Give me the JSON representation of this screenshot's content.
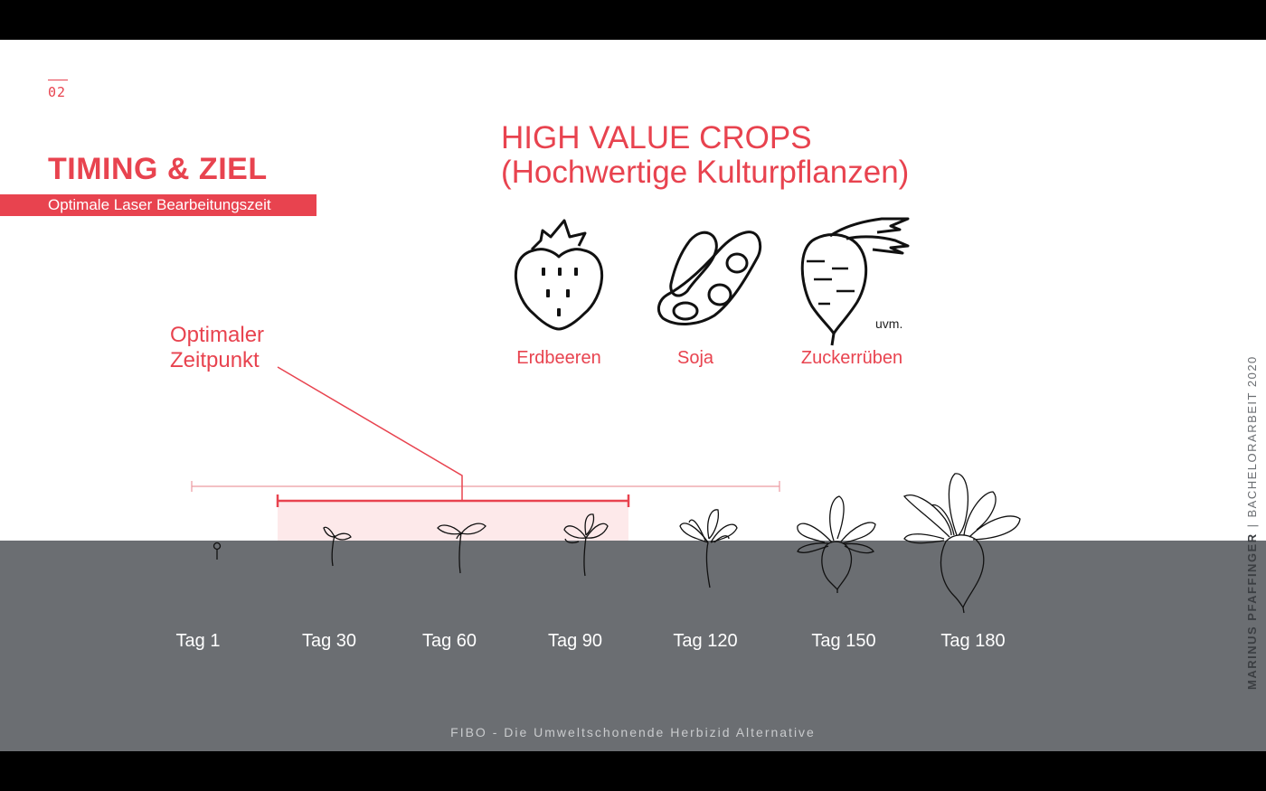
{
  "page_number": "02",
  "title": "TIMING & ZIEL",
  "subtitle": "Optimale Laser Bearbeitungszeit",
  "crops_heading_line1": "HIGH VALUE CROPS",
  "crops_heading_line2": "(Hochwertige Kulturpflanzen)",
  "crops": [
    {
      "label": "Erdbeeren",
      "icon": "strawberry-icon"
    },
    {
      "label": "Soja",
      "icon": "soybean-icon"
    },
    {
      "label": "Zuckerrüben",
      "icon": "sugar-beet-icon"
    }
  ],
  "crops_note": "uvm.",
  "optimal_line1": "Optimaler",
  "optimal_line2": "Zeitpunkt",
  "days": [
    "Tag 1",
    "Tag 30",
    "Tag 60",
    "Tag 90",
    "Tag 120",
    "Tag 150",
    "Tag 180"
  ],
  "footer": "FIBO - Die Umweltschonende Herbizid Alternative",
  "side_author": "MARINUS PFAFFINGER",
  "side_separator": "|",
  "side_thesis": "BACHELORARBEIT 2020",
  "colors": {
    "accent": "#e8434f",
    "ground": "#6b6e72",
    "highlight": "#fde9ea"
  }
}
